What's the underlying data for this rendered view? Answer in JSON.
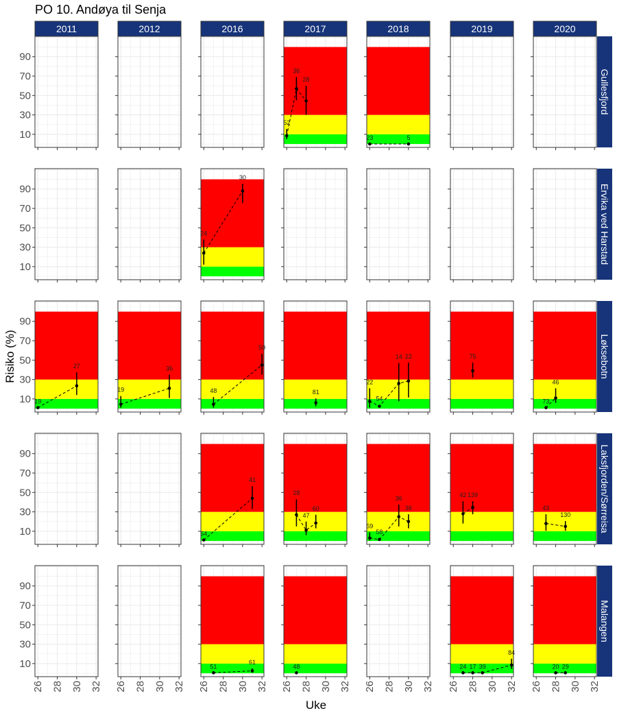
{
  "chart_data": {
    "type": "scatter",
    "title": "PO 10. Andøya til Senja",
    "xlabel": "Uke",
    "ylabel": "Risiko (%)",
    "xlim": [
      25.7,
      32.2
    ],
    "ylim": [
      -3.5,
      111
    ],
    "x_ticks": [
      26,
      28,
      30,
      32
    ],
    "y_ticks": [
      10,
      30,
      50,
      70,
      90
    ],
    "grid": true,
    "years": [
      "2011",
      "2012",
      "2016",
      "2017",
      "2018",
      "2019",
      "2020"
    ],
    "sites": [
      "Gullesfjord",
      "Ervika ved Harstad",
      "Løksebotn",
      "Laksfjorden/Sørreisa",
      "Malangen"
    ],
    "risk_bands": [
      {
        "name": "low",
        "from": 0,
        "to": 10,
        "color": "#00ff00"
      },
      {
        "name": "medium",
        "from": 10,
        "to": 30,
        "color": "#ffff00"
      },
      {
        "name": "high",
        "from": 30,
        "to": 100,
        "color": "#ff0000"
      }
    ],
    "strip_color": "#17347a",
    "panels": [
      {
        "site": "Gullesfjord",
        "year": "2017",
        "points": [
          {
            "week": 26,
            "value": 8.5,
            "lo": 5,
            "hi": 15.5,
            "label": "52"
          },
          {
            "week": 27,
            "value": 57,
            "lo": 45,
            "hi": 69,
            "label": "36"
          },
          {
            "week": 28,
            "value": 44.5,
            "lo": 30,
            "hi": 60,
            "label": "28"
          }
        ]
      },
      {
        "site": "Gullesfjord",
        "year": "2018",
        "points": [
          {
            "week": 26,
            "value": 0,
            "lo": 0,
            "hi": 0,
            "label": "23"
          },
          {
            "week": 30,
            "value": 0,
            "lo": 0,
            "hi": 0,
            "label": "5"
          }
        ]
      },
      {
        "site": "Ervika ved Harstad",
        "year": "2016",
        "points": [
          {
            "week": 26,
            "value": 24,
            "lo": 12,
            "hi": 38,
            "label": "24"
          },
          {
            "week": 30,
            "value": 88,
            "lo": 75.5,
            "hi": 95.5,
            "label": "30"
          }
        ]
      },
      {
        "site": "Løksebotn",
        "year": "2011",
        "points": [
          {
            "week": 26,
            "value": 1,
            "lo": 1,
            "hi": 1,
            "label": "19"
          },
          {
            "week": 30,
            "value": 23.5,
            "lo": 14,
            "hi": 37.5,
            "label": "27"
          }
        ]
      },
      {
        "site": "Løksebotn",
        "year": "2012",
        "points": [
          {
            "week": 26,
            "value": 4.5,
            "lo": 1,
            "hi": 13,
            "label": "19"
          },
          {
            "week": 31,
            "value": 21,
            "lo": 11,
            "hi": 35,
            "label": "36"
          }
        ]
      },
      {
        "site": "Løksebotn",
        "year": "2016",
        "points": [
          {
            "week": 27,
            "value": 4.5,
            "lo": 1,
            "hi": 12,
            "label": "48"
          },
          {
            "week": 32,
            "value": 45,
            "lo": 35,
            "hi": 56.5,
            "label": "50"
          }
        ]
      },
      {
        "site": "Løksebotn",
        "year": "2017",
        "points": [
          {
            "week": 29,
            "value": 6,
            "lo": 2.5,
            "hi": 10.5,
            "label": "81"
          }
        ]
      },
      {
        "site": "Løksebotn",
        "year": "2018",
        "points": [
          {
            "week": 26,
            "value": 7.5,
            "lo": 1,
            "hi": 21,
            "label": "22"
          },
          {
            "week": 27,
            "value": 2.5,
            "lo": 1,
            "hi": 4,
            "label": "54"
          },
          {
            "week": 29,
            "value": 26,
            "lo": 7.5,
            "hi": 47,
            "label": "14"
          },
          {
            "week": 30,
            "value": 28.5,
            "lo": 11.5,
            "hi": 47.5,
            "label": "22"
          }
        ]
      },
      {
        "site": "Løksebotn",
        "year": "2019",
        "points": [
          {
            "week": 28,
            "value": 39,
            "lo": 32,
            "hi": 47.5,
            "label": "75"
          }
        ]
      },
      {
        "site": "Løksebotn",
        "year": "2020",
        "points": [
          {
            "week": 27,
            "value": 1,
            "lo": 1,
            "hi": 1,
            "label": "73"
          },
          {
            "week": 28,
            "value": 11,
            "lo": 6,
            "hi": 21,
            "label": "46"
          }
        ]
      },
      {
        "site": "Laksfjorden/Sørreisa",
        "year": "2016",
        "points": [
          {
            "week": 26,
            "value": 1,
            "lo": 1,
            "hi": 1,
            "label": "54"
          },
          {
            "week": 31,
            "value": 44,
            "lo": 33,
            "hi": 56.5,
            "label": "41"
          }
        ]
      },
      {
        "site": "Laksfjorden/Sørreisa",
        "year": "2017",
        "points": [
          {
            "week": 27,
            "value": 27,
            "lo": 15,
            "hi": 43,
            "label": "28"
          },
          {
            "week": 28,
            "value": 11,
            "lo": 6,
            "hi": 20,
            "label": "47"
          },
          {
            "week": 29,
            "value": 18.5,
            "lo": 13,
            "hi": 27,
            "label": "60"
          }
        ]
      },
      {
        "site": "Laksfjorden/Sørreisa",
        "year": "2018",
        "points": [
          {
            "week": 26,
            "value": 3,
            "lo": 0.5,
            "hi": 9,
            "label": "59"
          },
          {
            "week": 27,
            "value": 1.5,
            "lo": 0.5,
            "hi": 3,
            "label": "58"
          },
          {
            "week": 29,
            "value": 25,
            "lo": 15,
            "hi": 37.5,
            "label": "36"
          },
          {
            "week": 30,
            "value": 20,
            "lo": 13,
            "hi": 27.5,
            "label": "36"
          }
        ]
      },
      {
        "site": "Laksfjorden/Sørreisa",
        "year": "2019",
        "points": [
          {
            "week": 27,
            "value": 28,
            "lo": 18,
            "hi": 41,
            "label": "42"
          },
          {
            "week": 28,
            "value": 34.5,
            "lo": 27.5,
            "hi": 41,
            "label": "139"
          }
        ]
      },
      {
        "site": "Laksfjorden/Sørreisa",
        "year": "2020",
        "points": [
          {
            "week": 27,
            "value": 18,
            "lo": 10.5,
            "hi": 27.5,
            "label": "43"
          },
          {
            "week": 29,
            "value": 15,
            "lo": 10.5,
            "hi": 20.5,
            "label": "130"
          }
        ]
      },
      {
        "site": "Malangen",
        "year": "2016",
        "points": [
          {
            "week": 27,
            "value": 0.5,
            "lo": 0.5,
            "hi": 0.5,
            "label": "51"
          },
          {
            "week": 31,
            "value": 2.5,
            "lo": 0.5,
            "hi": 5,
            "label": "61"
          }
        ]
      },
      {
        "site": "Malangen",
        "year": "2017",
        "points": [
          {
            "week": 27,
            "value": 0.5,
            "lo": 0.5,
            "hi": 0.5,
            "label": "48"
          }
        ]
      },
      {
        "site": "Malangen",
        "year": "2019",
        "points": [
          {
            "week": 27,
            "value": 0.5,
            "lo": 0.5,
            "hi": 0.5,
            "label": "24"
          },
          {
            "week": 28,
            "value": 0.5,
            "lo": 0.5,
            "hi": 0.5,
            "label": "17"
          },
          {
            "week": 29,
            "value": 0.5,
            "lo": 0.5,
            "hi": 0.5,
            "label": "39"
          },
          {
            "week": 32,
            "value": 8.5,
            "lo": 4.5,
            "hi": 15,
            "label": "84"
          }
        ]
      },
      {
        "site": "Malangen",
        "year": "2020",
        "points": [
          {
            "week": 28,
            "value": 0.5,
            "lo": 0.5,
            "hi": 0.5,
            "label": "20"
          },
          {
            "week": 29,
            "value": 0.5,
            "lo": 0.5,
            "hi": 0.5,
            "label": "29"
          }
        ]
      }
    ]
  }
}
